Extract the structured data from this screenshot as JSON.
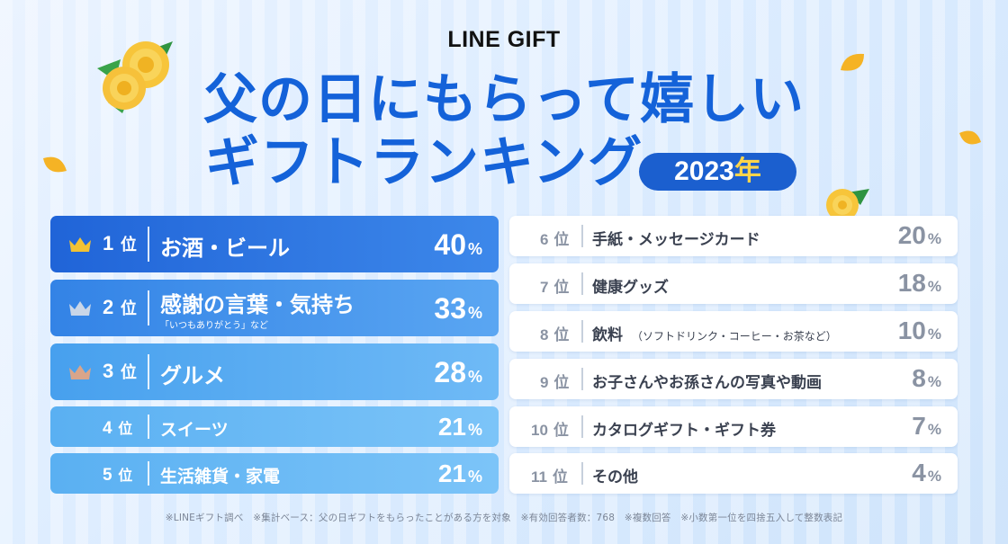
{
  "brand": "LINE GIFT",
  "title_line1": "父の日にもらって嬉しい",
  "title_line2": "ギフトランキング",
  "year": "2023",
  "year_suffix": "年",
  "rank_suffix": "位",
  "percent_unit": "%",
  "rankings": [
    {
      "rank": "1",
      "label": "お酒・ビール",
      "sub": "",
      "percent": "40",
      "crown": "gold"
    },
    {
      "rank": "2",
      "label": "感謝の言葉・気持ち",
      "sub": "「いつもありがとう」など",
      "percent": "33",
      "crown": "silver"
    },
    {
      "rank": "3",
      "label": "グルメ",
      "sub": "",
      "percent": "28",
      "crown": "bronze"
    },
    {
      "rank": "4",
      "label": "スイーツ",
      "sub": "",
      "percent": "21"
    },
    {
      "rank": "5",
      "label": "生活雑貨・家電",
      "sub": "",
      "percent": "21"
    },
    {
      "rank": "6",
      "label": "手紙・メッセージカード",
      "note": "",
      "percent": "20"
    },
    {
      "rank": "7",
      "label": "健康グッズ",
      "note": "",
      "percent": "18"
    },
    {
      "rank": "8",
      "label": "飲料",
      "note": "（ソフトドリンク・コーヒー・お茶など）",
      "percent": "10"
    },
    {
      "rank": "9",
      "label": "お子さんやお孫さんの写真や動画",
      "note": "",
      "percent": "8"
    },
    {
      "rank": "10",
      "label": "カタログギフト・ギフト券",
      "note": "",
      "percent": "7"
    },
    {
      "rank": "11",
      "label": "その他",
      "note": "",
      "percent": "4"
    }
  ],
  "footnote": "※LINEギフト調べ　※集計ベース：父の日ギフトをもらったことがある方を対象　※有効回答者数：768　※複数回答　※小数第一位を四捨五入して整数表記",
  "colors": {
    "title": "#1462d9",
    "badge": "#1b5fcf",
    "badge_accent": "#ffd54a",
    "crown_gold": "#f2c233",
    "crown_silver": "#c9d6e8",
    "crown_bronze": "#d9a58a",
    "gray_text": "#8a93a3"
  },
  "icons": [
    "crown-icon",
    "yellow-rose-icon",
    "petal-icon"
  ]
}
